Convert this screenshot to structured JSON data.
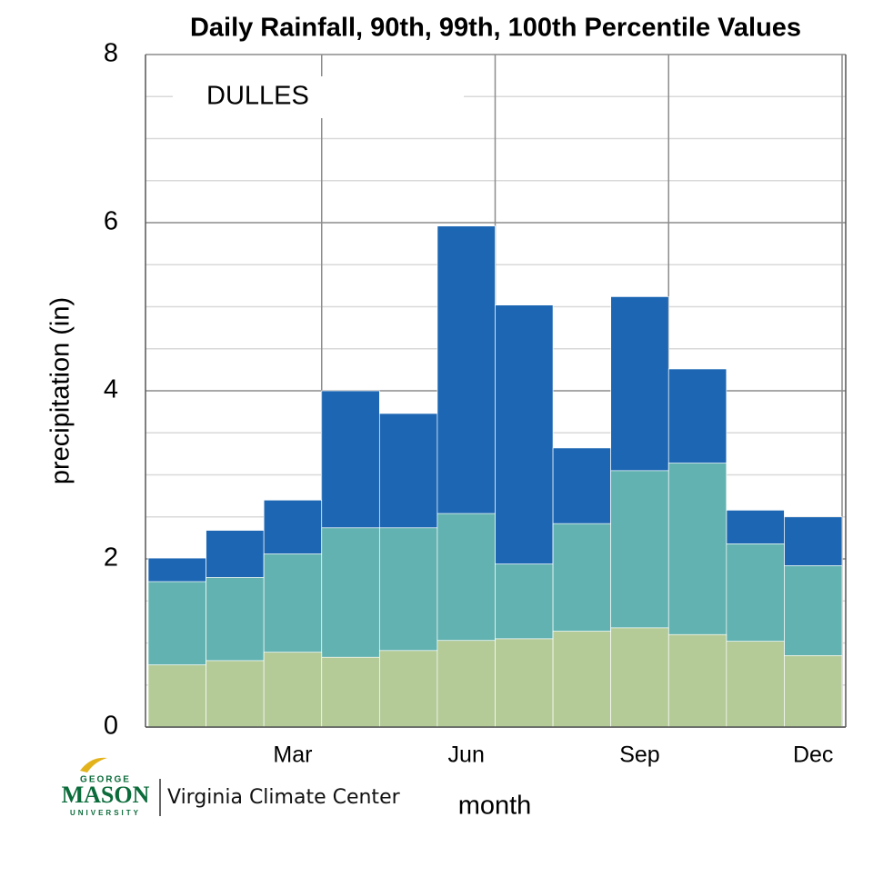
{
  "chart_data": {
    "type": "bar",
    "title": "Daily Rainfall, 90th, 99th, 100th Percentile Values",
    "annotation": "DULLES",
    "xlabel": "month",
    "ylabel": "precipitation (in)",
    "categories": [
      null,
      null,
      "Mar",
      null,
      null,
      "Jun",
      null,
      null,
      "Sep",
      null,
      null,
      "Dec"
    ],
    "series": [
      {
        "color": "#1c66b3",
        "values": [
          2.01,
          2.34,
          2.7,
          4.0,
          3.73,
          5.96,
          5.02,
          3.32,
          5.12,
          4.26,
          2.58,
          2.5
        ]
      },
      {
        "color": "#62b2b1",
        "values": [
          1.73,
          1.78,
          2.06,
          2.37,
          2.37,
          2.54,
          1.94,
          2.42,
          3.05,
          3.14,
          2.18,
          1.92
        ]
      },
      {
        "color": "#b4cb98",
        "values": [
          0.74,
          0.79,
          0.89,
          0.83,
          0.91,
          1.03,
          1.05,
          1.14,
          1.18,
          1.1,
          1.02,
          0.85
        ]
      }
    ],
    "ylim": [
      0,
      8
    ],
    "yticks": [
      0,
      2,
      4,
      6,
      8
    ],
    "grid": true
  },
  "logo": {
    "top": "GEORGE",
    "main": "MASON",
    "bottom": "UNIVERSITY",
    "center": "Virginia Climate Center"
  }
}
